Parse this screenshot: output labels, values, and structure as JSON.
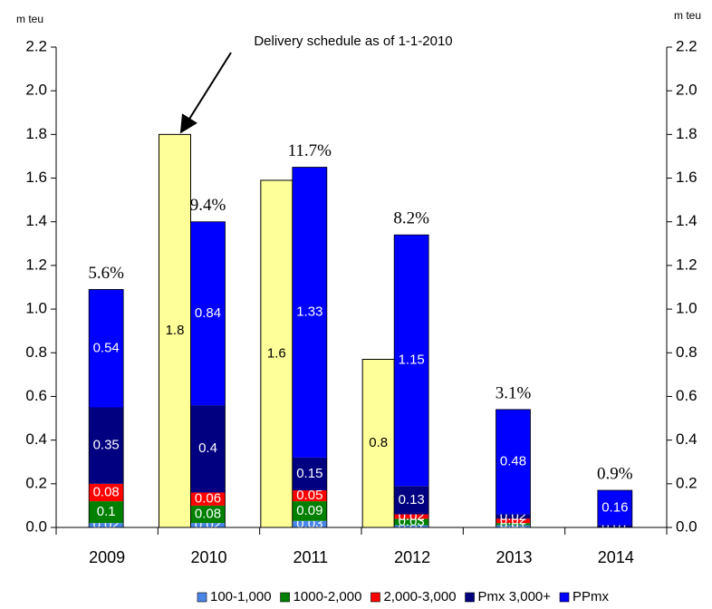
{
  "chart_data": {
    "type": "stacked_bar",
    "ylabel": "m teu",
    "y2label": "m teu",
    "categories": [
      "2009",
      "2010",
      "2011",
      "2012",
      "2013",
      "2014"
    ],
    "series": [
      {
        "name": "100-1,000",
        "color": "#4a86e8",
        "values": [
          0.02,
          0.02,
          0.03,
          0.01,
          0.01,
          0
        ]
      },
      {
        "name": "1000-2,000",
        "color": "#008000",
        "values": [
          0.1,
          0.08,
          0.09,
          0.03,
          0.01,
          0
        ]
      },
      {
        "name": "2,000-3,000",
        "color": "#ff0000",
        "values": [
          0.08,
          0.06,
          0.05,
          0.02,
          0.02,
          0
        ]
      },
      {
        "name": "Pmx 3,000+",
        "color": "#000080",
        "values": [
          0.35,
          0.4,
          0.15,
          0.13,
          0.02,
          0.01
        ]
      },
      {
        "name": "PPmx",
        "color": "#0000ff",
        "values": [
          0.54,
          0.84,
          1.33,
          1.15,
          0.48,
          0.16
        ]
      }
    ],
    "schedule": {
      "annotation": "Delivery schedule as of 1-1-2010",
      "color": "#ffff99",
      "values": [
        null,
        1.8,
        1.59,
        0.77,
        null,
        null
      ],
      "value_labels": [
        null,
        "1.8",
        "1.6",
        "0.8",
        null,
        null
      ]
    },
    "annotations": [
      "5.6%",
      "9.4%",
      "11.7%",
      "8.2%",
      "3.1%",
      "0.9%"
    ],
    "ylim": [
      0,
      2.2
    ],
    "yticks": [
      {
        "value": 0,
        "label": "0.0"
      },
      0.2,
      0.4,
      0.6,
      0.8,
      {
        "value": 1,
        "label": "1.0"
      },
      1.2,
      1.4,
      1.6,
      1.8,
      {
        "value": 2,
        "label": "2.0"
      },
      2.2
    ],
    "y2lim": [
      0,
      2.2
    ],
    "y2ticks": [
      {
        "value": 0,
        "label": "0.0"
      },
      0.2,
      0.4,
      0.6,
      0.8,
      {
        "value": 1,
        "label": "1.0"
      },
      1.2,
      1.4,
      1.6,
      1.8,
      {
        "value": 2,
        "label": "2.0"
      },
      2.2
    ],
    "legend": "bottom"
  }
}
